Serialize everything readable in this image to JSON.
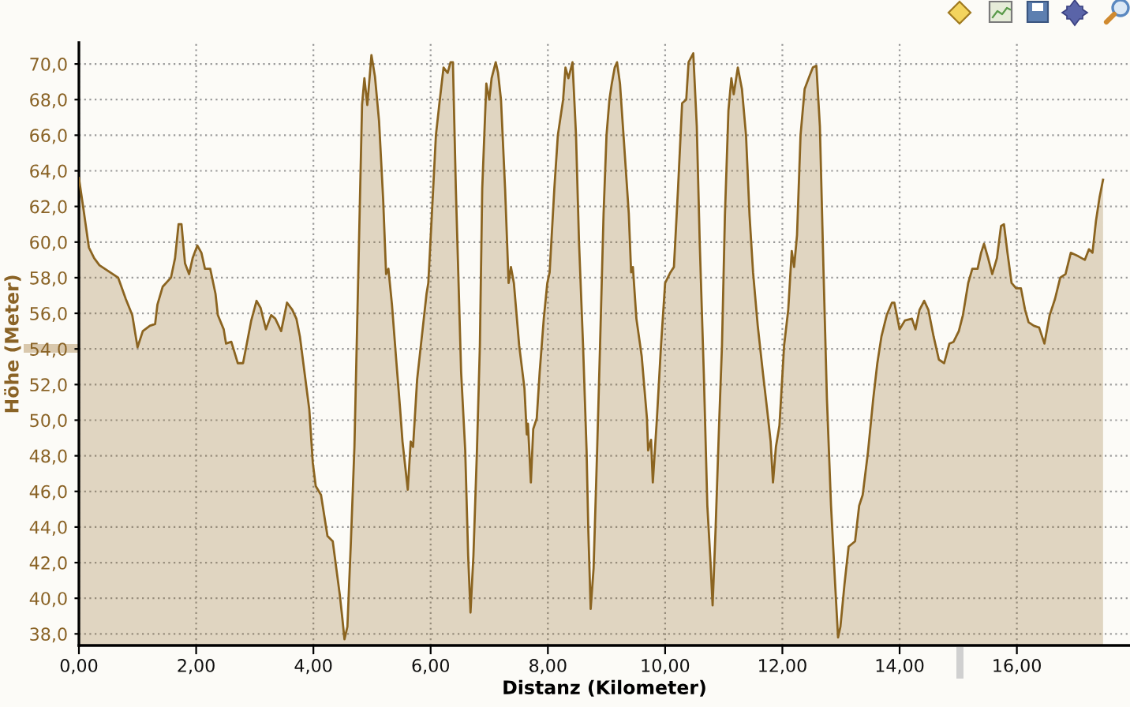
{
  "chart_data": {
    "type": "area",
    "xlabel": "Distanz (Kilometer)",
    "ylabel": "Höhe (Meter)",
    "x": [
      0.0,
      0.08,
      0.17,
      0.26,
      0.35,
      0.67,
      0.8,
      0.91,
      1.0,
      1.09,
      1.21,
      1.3,
      1.34,
      1.43,
      1.57,
      1.64,
      1.7,
      1.75,
      1.81,
      1.88,
      1.94,
      2.02,
      2.09,
      2.15,
      2.24,
      2.33,
      2.37,
      2.47,
      2.51,
      2.6,
      2.71,
      2.8,
      2.87,
      2.94,
      3.03,
      3.1,
      3.19,
      3.28,
      3.35,
      3.45,
      3.55,
      3.64,
      3.71,
      3.77,
      3.84,
      3.93,
      3.99,
      4.04,
      4.13,
      4.24,
      4.33,
      4.45,
      4.49,
      4.53,
      4.58,
      4.64,
      4.7,
      4.74,
      4.79,
      4.83,
      4.87,
      4.92,
      4.99,
      5.05,
      5.12,
      5.19,
      5.24,
      5.28,
      5.34,
      5.41,
      5.48,
      5.52,
      5.61,
      5.66,
      5.7,
      5.77,
      5.84,
      5.93,
      5.96,
      6.02,
      6.09,
      6.15,
      6.22,
      6.29,
      6.34,
      6.38,
      6.43,
      6.52,
      6.59,
      6.64,
      6.68,
      6.73,
      6.79,
      6.84,
      6.88,
      6.95,
      7.0,
      7.04,
      7.11,
      7.15,
      7.2,
      7.27,
      7.33,
      7.37,
      7.42,
      7.51,
      7.6,
      7.64,
      7.66,
      7.71,
      7.75,
      7.81,
      7.86,
      7.93,
      7.99,
      8.03,
      8.11,
      8.17,
      8.26,
      8.3,
      8.35,
      8.42,
      8.48,
      8.53,
      8.6,
      8.66,
      8.69,
      8.73,
      8.78,
      8.84,
      8.89,
      8.95,
      9.0,
      9.05,
      9.09,
      9.14,
      9.18,
      9.23,
      9.29,
      9.38,
      9.42,
      9.45,
      9.51,
      9.6,
      9.69,
      9.71,
      9.76,
      9.79,
      9.86,
      9.93,
      10.0,
      10.09,
      10.15,
      10.22,
      10.29,
      10.36,
      10.4,
      10.48,
      10.54,
      10.59,
      10.66,
      10.72,
      10.77,
      10.81,
      10.86,
      10.92,
      10.97,
      11.02,
      11.08,
      11.13,
      11.17,
      11.24,
      11.31,
      11.38,
      11.44,
      11.5,
      11.58,
      11.67,
      11.74,
      11.77,
      11.8,
      11.84,
      11.89,
      11.95,
      12.03,
      12.1,
      12.16,
      12.2,
      12.25,
      12.31,
      12.38,
      12.46,
      12.52,
      12.58,
      12.64,
      12.7,
      12.76,
      12.83,
      12.9,
      12.95,
      12.99,
      13.06,
      13.13,
      13.24,
      13.31,
      13.37,
      13.46,
      13.55,
      13.62,
      13.69,
      13.78,
      13.87,
      13.91,
      14.0,
      14.09,
      14.21,
      14.27,
      14.34,
      14.42,
      14.49,
      14.58,
      14.67,
      14.76,
      14.85,
      14.92,
      15.01,
      15.08,
      15.17,
      15.24,
      15.33,
      15.39,
      15.44,
      15.51,
      15.58,
      15.66,
      15.73,
      15.78,
      15.84,
      15.91,
      15.99,
      16.07,
      16.14,
      16.2,
      16.29,
      16.38,
      16.47,
      16.56,
      16.65,
      16.74,
      16.83,
      16.92,
      17.05,
      17.16,
      17.23,
      17.29,
      17.35,
      17.41,
      17.47
    ],
    "series": [
      {
        "color": "#8b6420",
        "values": [
          63.6,
          61.8,
          59.7,
          59.1,
          58.7,
          58.0,
          56.8,
          55.9,
          54.1,
          55.0,
          55.3,
          55.4,
          56.5,
          57.5,
          58.0,
          59.1,
          61.0,
          61.0,
          58.8,
          58.2,
          59.1,
          59.8,
          59.4,
          58.5,
          58.5,
          57.1,
          55.9,
          55.1,
          54.3,
          54.4,
          53.2,
          53.2,
          54.4,
          55.6,
          56.7,
          56.3,
          55.1,
          55.9,
          55.7,
          55.0,
          56.6,
          56.2,
          55.7,
          54.7,
          52.9,
          50.6,
          47.6,
          46.3,
          45.8,
          43.5,
          43.2,
          40.2,
          39.0,
          37.7,
          38.4,
          43.2,
          48.5,
          54.4,
          61.8,
          67.7,
          69.2,
          67.7,
          70.5,
          69.3,
          66.8,
          62.4,
          58.2,
          58.5,
          56.5,
          53.5,
          50.6,
          48.8,
          46.1,
          48.8,
          48.5,
          52.3,
          54.4,
          57.1,
          57.7,
          61.5,
          66.0,
          67.8,
          69.8,
          69.5,
          70.1,
          70.1,
          63.0,
          52.7,
          48.3,
          42.4,
          39.2,
          42.4,
          48.3,
          54.2,
          63.0,
          68.9,
          68.0,
          69.2,
          70.1,
          69.5,
          68.0,
          63.0,
          57.7,
          58.6,
          57.7,
          54.2,
          51.8,
          49.2,
          49.8,
          46.5,
          49.5,
          50.1,
          52.7,
          55.7,
          57.7,
          58.3,
          63.0,
          66.0,
          68.0,
          69.8,
          69.2,
          70.1,
          66.0,
          60.1,
          54.2,
          48.3,
          43.8,
          39.4,
          41.7,
          48.3,
          54.2,
          61.6,
          66.0,
          68.0,
          68.9,
          69.8,
          70.1,
          68.9,
          66.0,
          61.6,
          58.3,
          58.6,
          55.7,
          53.6,
          50.1,
          48.3,
          48.9,
          46.5,
          50.1,
          54.2,
          57.7,
          58.3,
          58.6,
          63.0,
          67.8,
          68.0,
          70.1,
          70.6,
          66.5,
          60.0,
          52.6,
          45.2,
          42.3,
          39.6,
          43.8,
          49.7,
          54.2,
          61.5,
          67.4,
          69.2,
          68.3,
          69.8,
          68.6,
          66.0,
          61.5,
          58.3,
          55.3,
          52.6,
          50.6,
          49.7,
          48.8,
          46.5,
          48.5,
          49.7,
          54.2,
          56.2,
          59.5,
          58.6,
          60.4,
          66.0,
          68.6,
          69.3,
          69.8,
          69.9,
          66.5,
          58.6,
          51.2,
          45.2,
          40.8,
          37.8,
          38.4,
          40.8,
          42.9,
          43.2,
          45.2,
          45.8,
          48.2,
          51.2,
          53.2,
          54.7,
          55.9,
          56.6,
          56.6,
          55.1,
          55.6,
          55.7,
          55.1,
          56.2,
          56.7,
          56.2,
          54.7,
          53.4,
          53.2,
          54.3,
          54.4,
          55.0,
          55.9,
          57.7,
          58.5,
          58.5,
          59.4,
          59.9,
          59.1,
          58.2,
          59.1,
          60.9,
          61.0,
          59.4,
          57.7,
          57.4,
          57.4,
          56.2,
          55.5,
          55.3,
          55.2,
          54.3,
          55.9,
          56.8,
          58.0,
          58.2,
          59.4,
          59.2,
          59.0,
          59.6,
          59.4,
          61.2,
          62.5,
          63.5
        ]
      }
    ],
    "xlim": [
      0,
      17.93
    ],
    "ylim": [
      37.35,
      71.2
    ],
    "xticks": [
      {
        "value": 0,
        "label": "0,00"
      },
      {
        "value": 2,
        "label": "2,00"
      },
      {
        "value": 4,
        "label": "4,00"
      },
      {
        "value": 6,
        "label": "6,00"
      },
      {
        "value": 8,
        "label": "8,00"
      },
      {
        "value": 10,
        "label": "10,00"
      },
      {
        "value": 12,
        "label": "12,00"
      },
      {
        "value": 14,
        "label": "14,00"
      },
      {
        "value": 16,
        "label": "16,00"
      }
    ],
    "yticks": [
      {
        "value": 38,
        "label": "38,0"
      },
      {
        "value": 40,
        "label": "40,0"
      },
      {
        "value": 42,
        "label": "42,0"
      },
      {
        "value": 44,
        "label": "44,0"
      },
      {
        "value": 46,
        "label": "46,0"
      },
      {
        "value": 48,
        "label": "48,0"
      },
      {
        "value": 50,
        "label": "50,0"
      },
      {
        "value": 52,
        "label": "52,0"
      },
      {
        "value": 54,
        "label": "54,0"
      },
      {
        "value": 56,
        "label": "56,0"
      },
      {
        "value": 58,
        "label": "58,0"
      },
      {
        "value": 60,
        "label": "60,0"
      },
      {
        "value": 62,
        "label": "62,0"
      },
      {
        "value": 64,
        "label": "64,0"
      },
      {
        "value": 66,
        "label": "66,0"
      },
      {
        "value": 68,
        "label": "68,0"
      },
      {
        "value": 70,
        "label": "70,0"
      }
    ],
    "grid": true
  }
}
